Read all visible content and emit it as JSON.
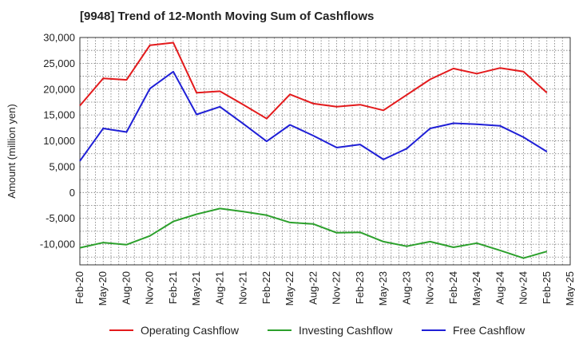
{
  "chart_data": {
    "type": "line",
    "title": "[9948]  Trend of 12-Month Moving Sum of Cashflows",
    "ylabel": "Amount (million yen)",
    "xlabel": "",
    "ylim": [
      -14000,
      30000
    ],
    "y_ticks": [
      30000,
      25000,
      20000,
      15000,
      10000,
      5000,
      0,
      -5000,
      -10000
    ],
    "y_tick_labels": [
      "30,000",
      "25,000",
      "20,000",
      "15,000",
      "10,000",
      "5,000",
      "0",
      "-5,000",
      "-10,000"
    ],
    "categories": [
      "Feb-20",
      "May-20",
      "Aug-20",
      "Nov-20",
      "Feb-21",
      "May-21",
      "Aug-21",
      "Nov-21",
      "Feb-22",
      "May-22",
      "Aug-22",
      "Nov-22",
      "Feb-23",
      "May-23",
      "Aug-23",
      "Nov-23",
      "Feb-24",
      "May-24",
      "Aug-24",
      "Nov-24",
      "Feb-25",
      "May-25"
    ],
    "grid": true,
    "legend_position": "bottom",
    "series": [
      {
        "name": "Operating Cashflow",
        "color": "#e31a1c",
        "values": [
          16800,
          22100,
          21800,
          28500,
          29000,
          19300,
          19600,
          17000,
          14300,
          19000,
          17200,
          16600,
          17000,
          15900,
          18900,
          21900,
          24000,
          23000,
          24100,
          23400,
          19300,
          null
        ]
      },
      {
        "name": "Investing Cashflow",
        "color": "#2ca02c",
        "values": [
          -10700,
          -9700,
          -10100,
          -8400,
          -5600,
          -4200,
          -3100,
          -3700,
          -4400,
          -5800,
          -6100,
          -7800,
          -7700,
          -9500,
          -10400,
          -9500,
          -10600,
          -9800,
          -11200,
          -12700,
          -11400,
          null
        ]
      },
      {
        "name": "Free Cashflow",
        "color": "#1f1fd6",
        "values": [
          6100,
          12400,
          11700,
          20100,
          23400,
          15100,
          16600,
          13300,
          9900,
          13100,
          11000,
          8700,
          9300,
          6400,
          8500,
          12400,
          13400,
          13200,
          12900,
          10700,
          7900,
          null
        ]
      }
    ]
  }
}
